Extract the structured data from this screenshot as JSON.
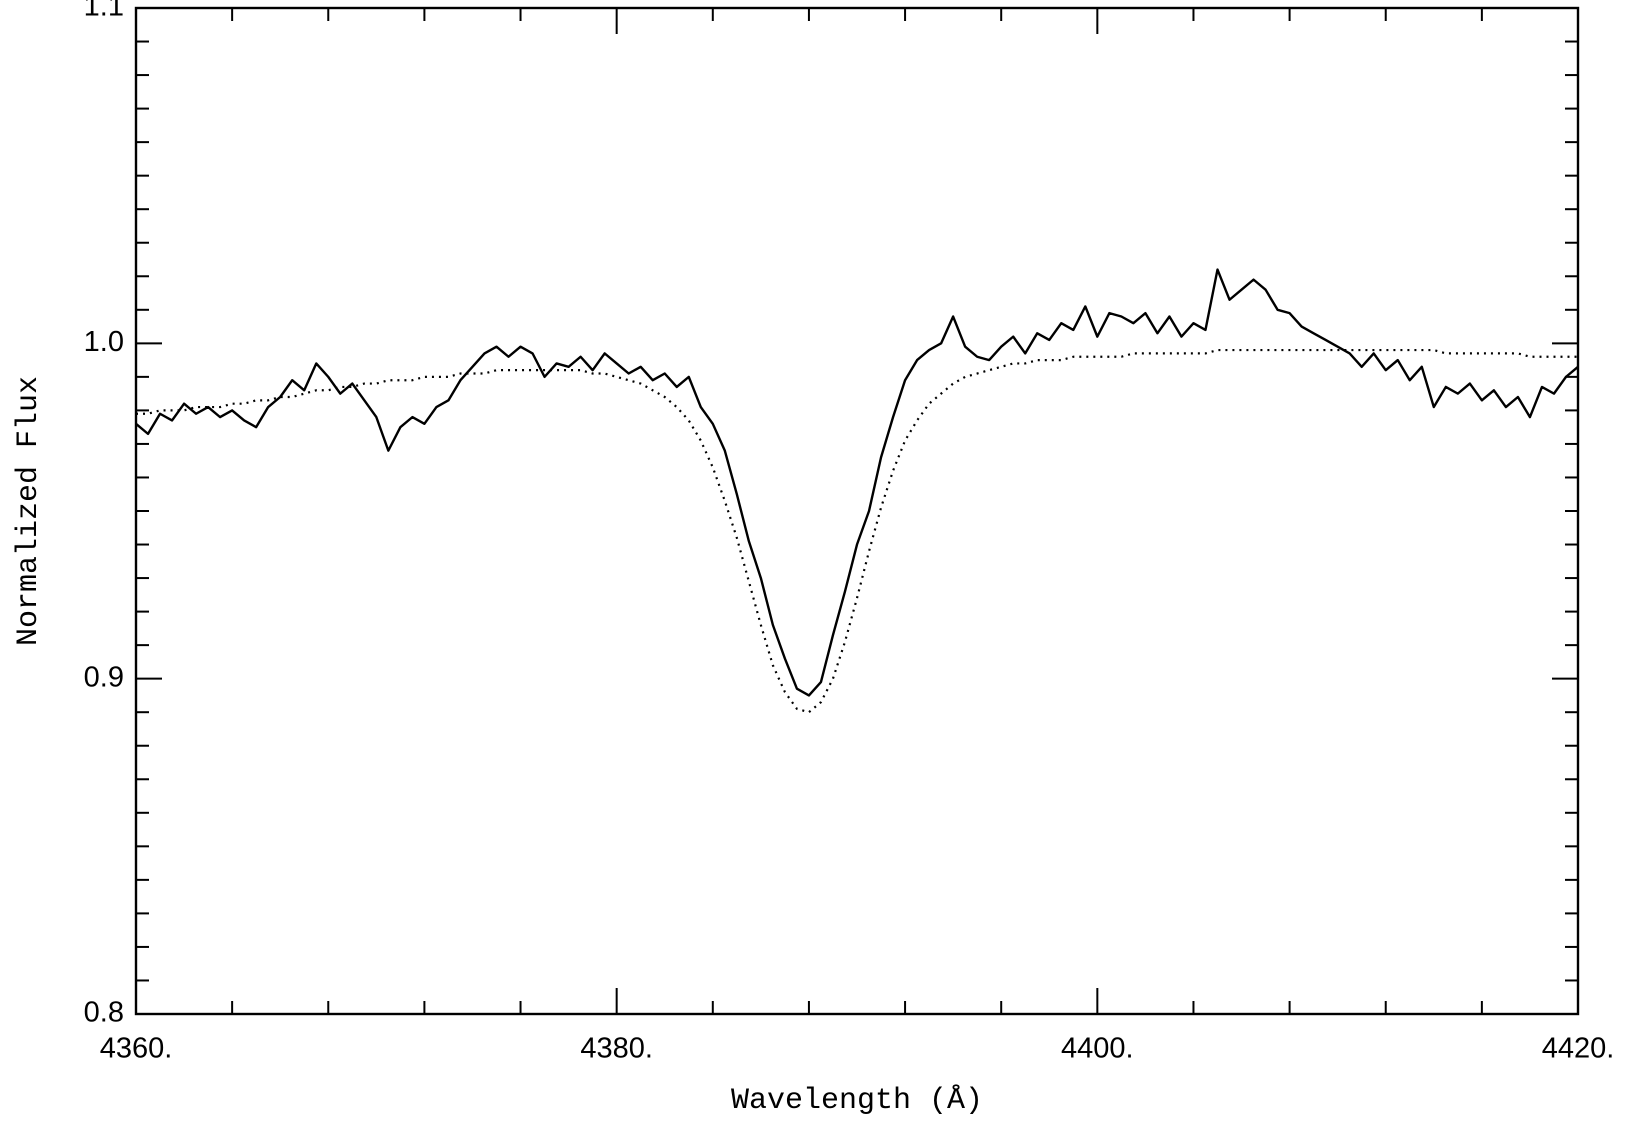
{
  "chart_data": {
    "type": "line",
    "xlabel": "Wavelength (Å)",
    "ylabel": "Normalized Flux",
    "xlim": [
      4360,
      4420
    ],
    "ylim": [
      0.8,
      1.1
    ],
    "xticks": [
      {
        "value": 4360,
        "label": "4360."
      },
      {
        "value": 4380,
        "label": "4380."
      },
      {
        "value": 4400,
        "label": "4400."
      },
      {
        "value": 4420,
        "label": "4420."
      }
    ],
    "xminorticks": [
      4364,
      4368,
      4372,
      4376,
      4384,
      4388,
      4392,
      4396,
      4404,
      4408,
      4412,
      4416
    ],
    "yticks": [
      0.8,
      0.9,
      {
        "value": 1.0,
        "label": "1.0"
      },
      1.1
    ],
    "yminorticks": [
      0.81,
      0.82,
      0.83,
      0.84,
      0.85,
      0.86,
      0.87,
      0.88,
      0.89,
      0.91,
      0.92,
      0.93,
      0.94,
      0.95,
      0.96,
      0.97,
      0.98,
      0.99,
      1.01,
      1.02,
      1.03,
      1.04,
      1.05,
      1.06,
      1.07,
      1.08,
      1.09
    ],
    "x": [
      4360,
      4360.5,
      4361,
      4361.5,
      4362,
      4362.5,
      4363,
      4363.5,
      4364,
      4364.5,
      4365,
      4365.5,
      4366,
      4366.5,
      4367,
      4367.5,
      4368,
      4368.5,
      4369,
      4369.5,
      4370,
      4370.5,
      4371,
      4371.5,
      4372,
      4372.5,
      4373,
      4373.5,
      4374,
      4374.5,
      4375,
      4375.5,
      4376,
      4376.5,
      4377,
      4377.5,
      4378,
      4378.5,
      4379,
      4379.5,
      4380,
      4380.5,
      4381,
      4381.5,
      4382,
      4382.5,
      4383,
      4383.5,
      4384,
      4384.5,
      4385,
      4385.5,
      4386,
      4386.5,
      4387,
      4387.5,
      4388,
      4388.5,
      4389,
      4389.5,
      4390,
      4390.5,
      4391,
      4391.5,
      4392,
      4392.5,
      4393,
      4393.5,
      4394,
      4394.5,
      4395,
      4395.5,
      4396,
      4396.5,
      4397,
      4397.5,
      4398,
      4398.5,
      4399,
      4399.5,
      4400,
      4400.5,
      4401,
      4401.5,
      4402,
      4402.5,
      4403,
      4403.5,
      4404,
      4404.5,
      4405,
      4405.5,
      4406,
      4406.5,
      4407,
      4407.5,
      4408,
      4408.5,
      4409,
      4409.5,
      4410,
      4410.5,
      4411,
      4411.5,
      4412,
      4412.5,
      4413,
      4413.5,
      4414,
      4414.5,
      4415,
      4415.5,
      4416,
      4416.5,
      4417,
      4417.5,
      4418,
      4418.5,
      4419,
      4419.5,
      4420
    ],
    "series": [
      {
        "color": "#000000",
        "style": "solid",
        "values": [
          0.976,
          0.973,
          0.979,
          0.977,
          0.982,
          0.979,
          0.981,
          0.978,
          0.98,
          0.977,
          0.975,
          0.981,
          0.984,
          0.989,
          0.986,
          0.994,
          0.99,
          0.985,
          0.988,
          0.983,
          0.978,
          0.968,
          0.975,
          0.978,
          0.976,
          0.981,
          0.983,
          0.989,
          0.993,
          0.997,
          0.999,
          0.996,
          0.999,
          0.997,
          0.99,
          0.994,
          0.993,
          0.996,
          0.992,
          0.997,
          0.994,
          0.991,
          0.993,
          0.989,
          0.991,
          0.987,
          0.99,
          0.981,
          0.976,
          0.968,
          0.955,
          0.941,
          0.93,
          0.916,
          0.906,
          0.897,
          0.895,
          0.899,
          0.913,
          0.926,
          0.94,
          0.95,
          0.966,
          0.978,
          0.989,
          0.995,
          0.998,
          1.0,
          1.008,
          0.999,
          0.996,
          0.995,
          0.999,
          1.002,
          0.997,
          1.003,
          1.001,
          1.006,
          1.004,
          1.011,
          1.002,
          1.009,
          1.008,
          1.006,
          1.009,
          1.003,
          1.008,
          1.002,
          1.006,
          1.004,
          1.022,
          1.013,
          1.016,
          1.019,
          1.016,
          1.01,
          1.009,
          1.005,
          1.003,
          1.001,
          0.999,
          0.997,
          0.993,
          0.997,
          0.992,
          0.995,
          0.989,
          0.993,
          0.981,
          0.987,
          0.985,
          0.988,
          0.983,
          0.986,
          0.981,
          0.984,
          0.978,
          0.987,
          0.985,
          0.99,
          0.993
        ]
      },
      {
        "color": "#000000",
        "style": "dotted",
        "values": [
          0.979,
          0.979,
          0.98,
          0.98,
          0.98,
          0.981,
          0.981,
          0.981,
          0.982,
          0.982,
          0.983,
          0.983,
          0.984,
          0.984,
          0.985,
          0.986,
          0.986,
          0.987,
          0.987,
          0.988,
          0.988,
          0.989,
          0.989,
          0.989,
          0.99,
          0.99,
          0.99,
          0.991,
          0.991,
          0.991,
          0.992,
          0.992,
          0.992,
          0.992,
          0.992,
          0.992,
          0.992,
          0.992,
          0.991,
          0.991,
          0.99,
          0.989,
          0.988,
          0.986,
          0.984,
          0.981,
          0.977,
          0.971,
          0.963,
          0.953,
          0.942,
          0.929,
          0.916,
          0.904,
          0.896,
          0.891,
          0.89,
          0.893,
          0.9,
          0.911,
          0.924,
          0.938,
          0.951,
          0.962,
          0.971,
          0.977,
          0.982,
          0.985,
          0.988,
          0.99,
          0.991,
          0.992,
          0.993,
          0.994,
          0.994,
          0.995,
          0.995,
          0.995,
          0.996,
          0.996,
          0.996,
          0.996,
          0.996,
          0.997,
          0.997,
          0.997,
          0.997,
          0.997,
          0.997,
          0.997,
          0.998,
          0.998,
          0.998,
          0.998,
          0.998,
          0.998,
          0.998,
          0.998,
          0.998,
          0.998,
          0.998,
          0.998,
          0.998,
          0.998,
          0.998,
          0.998,
          0.998,
          0.998,
          0.998,
          0.997,
          0.997,
          0.997,
          0.997,
          0.997,
          0.997,
          0.997,
          0.996,
          0.996,
          0.996,
          0.996,
          0.996
        ]
      }
    ]
  }
}
